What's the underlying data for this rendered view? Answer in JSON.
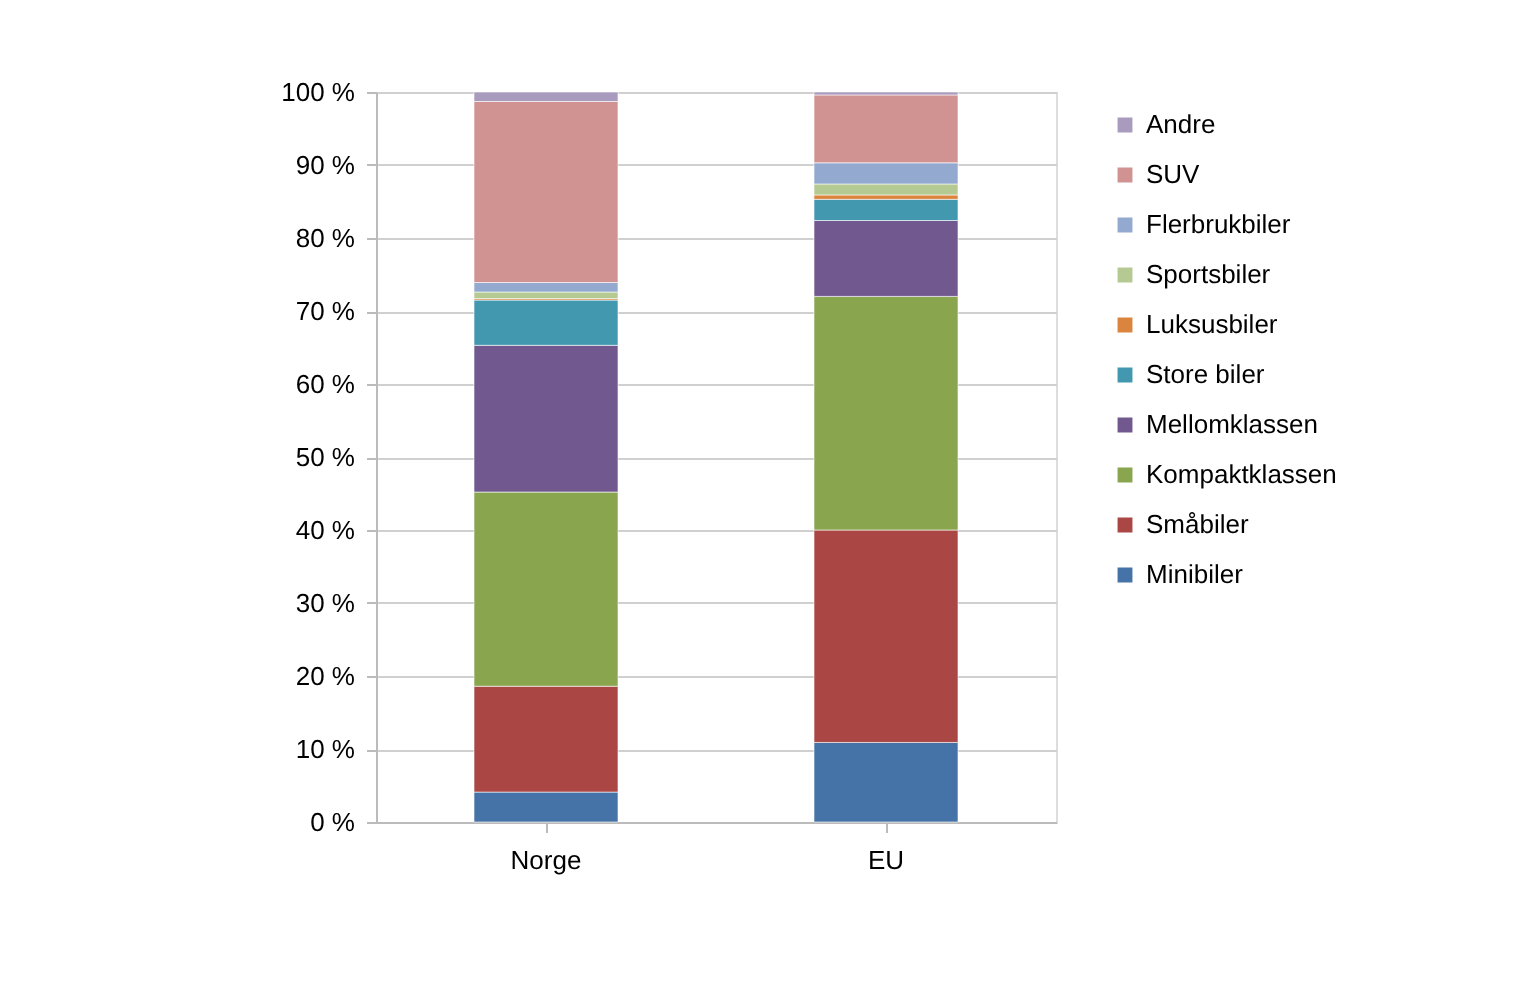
{
  "chart_data": {
    "type": "bar",
    "stacked": true,
    "categories": [
      "Norge",
      "EU"
    ],
    "series": [
      {
        "name": "Minibiler",
        "color": "#4572a7",
        "values": [
          4.1,
          10.9
        ]
      },
      {
        "name": "Småbiler",
        "color": "#aa4643",
        "values": [
          14.5,
          29.1
        ]
      },
      {
        "name": "Kompaktklassen",
        "color": "#89a54e",
        "values": [
          26.6,
          32.0
        ]
      },
      {
        "name": "Mellomklassen",
        "color": "#71588f",
        "values": [
          20.1,
          10.4
        ]
      },
      {
        "name": "Store biler",
        "color": "#4198af",
        "values": [
          6.2,
          2.9
        ]
      },
      {
        "name": "Luksusbiler",
        "color": "#db843d",
        "values": [
          0.2,
          0.6
        ]
      },
      {
        "name": "Sportsbiler",
        "color": "#b5ca92",
        "values": [
          0.9,
          1.5
        ]
      },
      {
        "name": "Flerbrukbiler",
        "color": "#93a9cf",
        "values": [
          1.3,
          2.9
        ]
      },
      {
        "name": "SUV",
        "color": "#d19392",
        "values": [
          24.8,
          9.3
        ]
      },
      {
        "name": "Andre",
        "color": "#a99bbd",
        "values": [
          1.3,
          0.4
        ]
      }
    ],
    "ylim": [
      0,
      100
    ],
    "yticks": [
      {
        "value": 0,
        "label": "0 %"
      },
      {
        "value": 10,
        "label": "10 %"
      },
      {
        "value": 20,
        "label": "20 %"
      },
      {
        "value": 30,
        "label": "30 %"
      },
      {
        "value": 40,
        "label": "40 %"
      },
      {
        "value": 50,
        "label": "50 %"
      },
      {
        "value": 60,
        "label": "60 %"
      },
      {
        "value": 70,
        "label": "70 %"
      },
      {
        "value": 80,
        "label": "80 %"
      },
      {
        "value": 90,
        "label": "90 %"
      },
      {
        "value": 100,
        "label": "100 %"
      }
    ],
    "grid": "y",
    "legend": "right"
  }
}
